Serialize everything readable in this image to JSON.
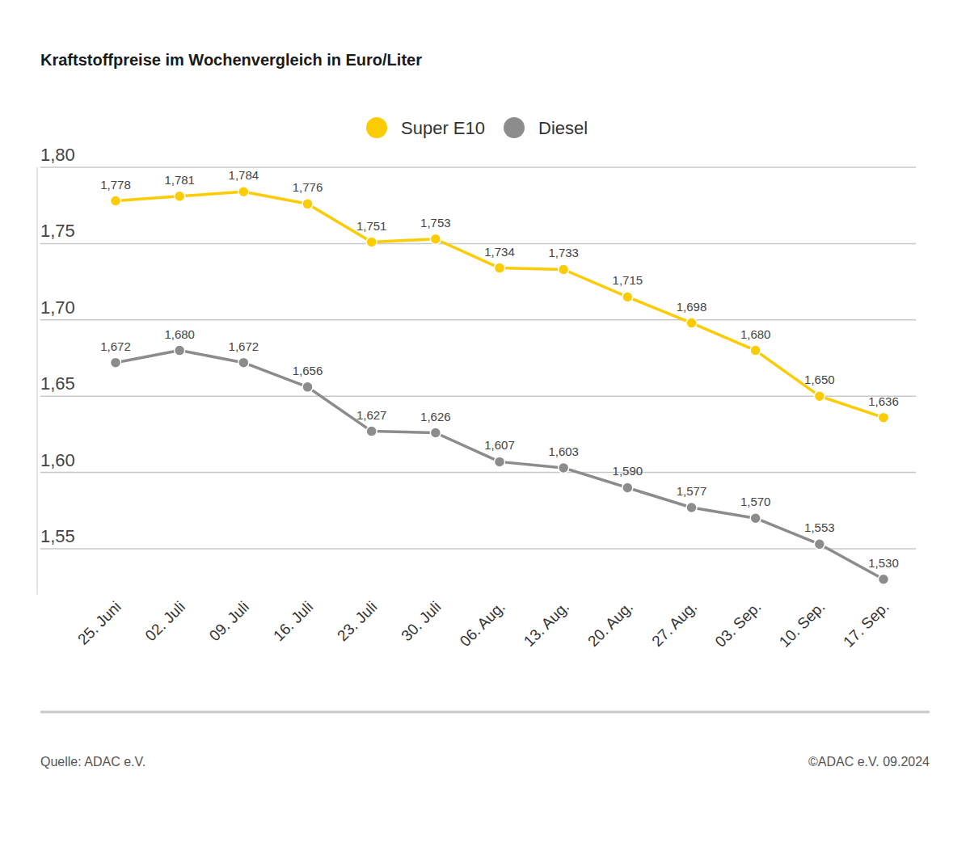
{
  "chart_data": {
    "type": "line",
    "title": "Kraftstoffpreise im Wochenvergleich in Euro/Liter",
    "categories": [
      "25. Juni",
      "02. Juli",
      "09. Juli",
      "16. Juli",
      "23. Juli",
      "30. Juli",
      "06. Aug.",
      "13. Aug.",
      "20. Aug.",
      "27. Aug.",
      "03. Sep.",
      "10. Sep.",
      "17. Sep."
    ],
    "series": [
      {
        "name": "Super E10",
        "color": "#fccb00",
        "marker": "circle",
        "values": [
          1.778,
          1.781,
          1.784,
          1.776,
          1.751,
          1.753,
          1.734,
          1.733,
          1.715,
          1.698,
          1.68,
          1.65,
          1.636
        ],
        "value_labels": [
          "1,778",
          "1,781",
          "1,784",
          "1,776",
          "1,751",
          "1,753",
          "1,734",
          "1,733",
          "1,715",
          "1,698",
          "1,680",
          "1,650",
          "1,636"
        ]
      },
      {
        "name": "Diesel",
        "color": "#8c8c8c",
        "marker": "circle",
        "values": [
          1.672,
          1.68,
          1.672,
          1.656,
          1.627,
          1.626,
          1.607,
          1.603,
          1.59,
          1.577,
          1.57,
          1.553,
          1.53
        ],
        "value_labels": [
          "1,672",
          "1,680",
          "1,672",
          "1,656",
          "1,627",
          "1,626",
          "1,607",
          "1,603",
          "1,590",
          "1,577",
          "1,570",
          "1,553",
          "1,530"
        ]
      }
    ],
    "ylim": [
      1.52,
      1.8
    ],
    "yticks": [
      {
        "value": 1.55,
        "label": "1,55"
      },
      {
        "value": 1.6,
        "label": "1,60"
      },
      {
        "value": 1.65,
        "label": "1,65"
      },
      {
        "value": 1.7,
        "label": "1,70"
      },
      {
        "value": 1.75,
        "label": "1,75"
      },
      {
        "value": 1.8,
        "label": "1,80"
      }
    ],
    "grid": true,
    "legend": "top",
    "data_labels": true,
    "annotations": [
      "Quelle: ADAC e.V.",
      "©ADAC e.V. 09.2024"
    ]
  }
}
